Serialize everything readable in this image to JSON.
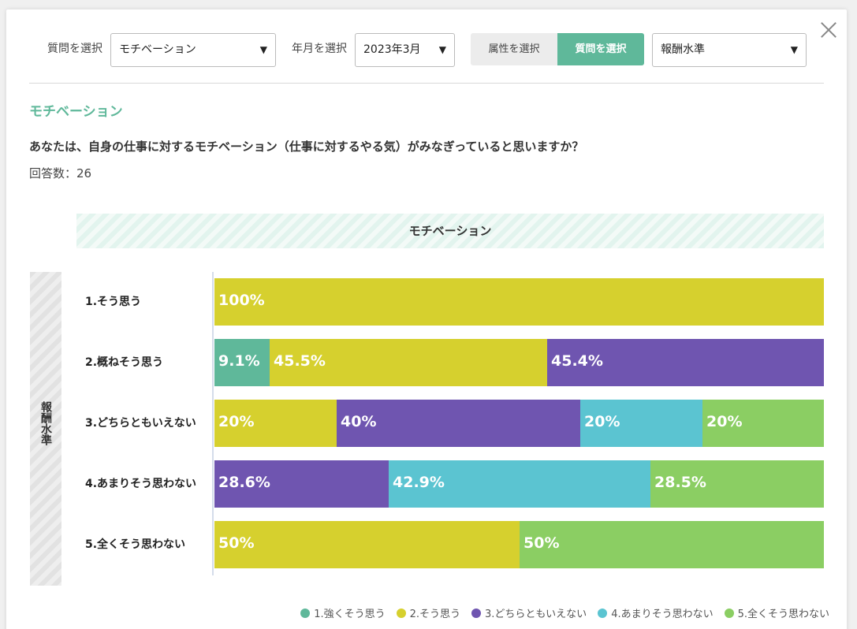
{
  "filters": {
    "question_label": "質問を選択",
    "question_value": "モチベーション",
    "month_label": "年月を選択",
    "month_value": "2023年3月",
    "toggle_attr": "属性を選択",
    "toggle_question": "質問を選択",
    "attr_value": "報酬水準",
    "arrow": "▼"
  },
  "section_title": "モチベーション",
  "question_text": "あなたは、自身の仕事に対するモチベーション（仕事に対するやる気）がみなぎっていると思いますか？",
  "response_count": "回答数：26",
  "chart_data": {
    "type": "bar",
    "orientation": "horizontal",
    "stacked": true,
    "title": "モチベーション",
    "group_axis_label": "報酬水準",
    "xlim": [
      0,
      100
    ],
    "categories": [
      "1.そう思う",
      "2.概ねそう思う",
      "3.どちらともいえない",
      "4.あまりそう思わない",
      "5.全くそう思わない"
    ],
    "series": [
      {
        "name": "1.強くそう思う",
        "color": "#5fb89a",
        "values": [
          0,
          9.1,
          0,
          0,
          0
        ]
      },
      {
        "name": "2.そう思う",
        "color": "#d6d02e",
        "values": [
          100,
          45.5,
          20,
          0,
          50
        ]
      },
      {
        "name": "3.どちらともいえない",
        "color": "#6f55b0",
        "values": [
          0,
          45.4,
          40,
          28.6,
          0
        ]
      },
      {
        "name": "4.あまりそう思わない",
        "color": "#5bc4d1",
        "values": [
          0,
          0,
          20,
          42.9,
          0
        ]
      },
      {
        "name": "5.全くそう思わない",
        "color": "#8bce63",
        "values": [
          0,
          0,
          20,
          28.5,
          50
        ]
      }
    ],
    "legend_position": "bottom-right"
  }
}
